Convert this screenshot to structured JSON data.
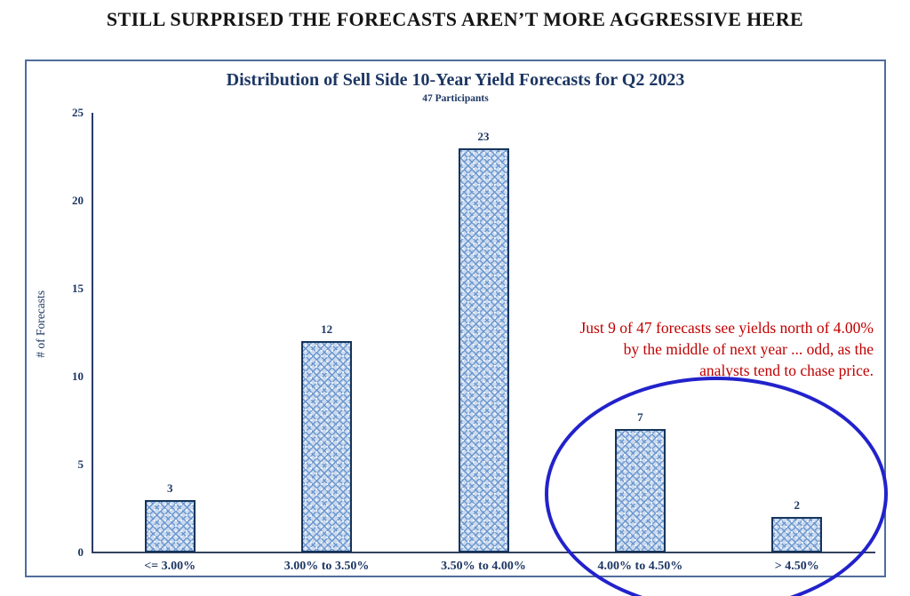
{
  "page": {
    "headline": "STILL SURPRISED THE FORECASTS AREN’T MORE AGGRESSIVE HERE"
  },
  "chart_data": {
    "type": "bar",
    "title": "Distribution of Sell Side 10-Year Yield Forecasts for Q2 2023",
    "subtitle": "47 Participants",
    "categories": [
      "<= 3.00%",
      "3.00% to 3.50%",
      "3.50% to 4.00%",
      "4.00% to 4.50%",
      "> 4.50%"
    ],
    "values": [
      3,
      12,
      23,
      7,
      2
    ],
    "xlabel": "",
    "ylabel": "# of Forecasts",
    "ylim": [
      0,
      25
    ],
    "yticks": [
      0,
      5,
      10,
      15,
      20,
      25
    ],
    "grid": false,
    "legend": "none",
    "annotation": {
      "lines": [
        "Just 9 of 47 forecasts see yields north of 4.00%",
        "by the middle of next year ... odd, as the",
        "analysts tend to chase price."
      ],
      "color": "#c00000",
      "align": "right"
    },
    "highlight_ellipse": {
      "circles_categories": [
        "4.00% to 4.50%",
        "> 4.50%"
      ],
      "color": "#2222cc"
    }
  },
  "colors": {
    "title_navy": "#1c3663",
    "bar_fill": "#ccdaee",
    "bar_pattern": "#6b97cf",
    "bar_border": "#16355c",
    "frame_border": "#4f6d9c",
    "annotation_red": "#c00000",
    "ellipse_blue": "#2222cc",
    "headline_black": "#141414"
  }
}
